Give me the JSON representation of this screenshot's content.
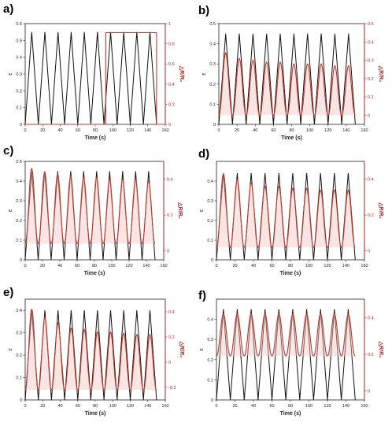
{
  "colors": {
    "strain": "#111111",
    "response": "#c0392b",
    "right_axis": "#b22222"
  },
  "chart_data": [
    {
      "panel": "a)",
      "type": "line",
      "xlabel": "Time (s)",
      "ylabel": "ε",
      "y2label": "△R/R₀",
      "xlim": [
        0,
        160
      ],
      "xticks": [
        0,
        20,
        40,
        60,
        80,
        100,
        120,
        140,
        160
      ],
      "ylim": [
        0,
        0.6
      ],
      "yticks": [
        0,
        0.1,
        0.2,
        0.3,
        0.4,
        0.5,
        0.6
      ],
      "y2lim": [
        0,
        1.0
      ],
      "y2ticks": [
        0.0,
        0.2,
        0.4,
        0.6,
        0.8,
        1.0
      ],
      "period_s": 15,
      "cycles": 10,
      "strain_amplitude": 0.55,
      "response": {
        "shape": "plateau",
        "start_s": 92,
        "end_s": 150,
        "level": 0.91,
        "base": 0.0
      }
    },
    {
      "panel": "b)",
      "type": "line",
      "xlabel": "Time (s)",
      "ylabel": "ε",
      "y2label": "△R/R₀",
      "xlim": [
        0,
        160
      ],
      "xticks": [
        0,
        20,
        40,
        60,
        80,
        100,
        120,
        140,
        160
      ],
      "ylim": [
        0,
        0.5
      ],
      "yticks": [
        0.0,
        0.1,
        0.2,
        0.3,
        0.4,
        0.5
      ],
      "y2lim": [
        -0.05,
        0.5
      ],
      "y2ticks": [
        0.0,
        0.1,
        0.2,
        0.3,
        0.4,
        0.5
      ],
      "period_s": 15,
      "cycles": 10,
      "strain_amplitude": 0.45,
      "response": {
        "shape": "peaks",
        "peaks": [
          0.34,
          0.31,
          0.3,
          0.29,
          0.29,
          0.28,
          0.28,
          0.28,
          0.27,
          0.27
        ],
        "base": 0.0
      }
    },
    {
      "panel": "c)",
      "type": "line",
      "xlabel": "Time (s)",
      "ylabel": "ε",
      "y2label": "△R/R₀",
      "xlim": [
        0,
        160
      ],
      "xticks": [
        0,
        20,
        40,
        60,
        80,
        100,
        120,
        140,
        160
      ],
      "ylim": [
        0,
        0.5
      ],
      "yticks": [
        0.0,
        0.1,
        0.2,
        0.3,
        0.4,
        0.5
      ],
      "y2lim": [
        -0.05,
        0.5
      ],
      "y2ticks": [
        0.0,
        0.2,
        0.4
      ],
      "period_s": 15,
      "cycles": 10,
      "strain_amplitude": 0.45,
      "response": {
        "shape": "peaks",
        "peaks": [
          0.46,
          0.44,
          0.43,
          0.42,
          0.41,
          0.41,
          0.4,
          0.4,
          0.4,
          0.39
        ],
        "base": 0.04
      }
    },
    {
      "panel": "d)",
      "type": "line",
      "xlabel": "Time (s)",
      "ylabel": "ε",
      "y2label": "△R/R₀",
      "xlim": [
        0,
        160
      ],
      "xticks": [
        0,
        20,
        40,
        60,
        80,
        100,
        120,
        140,
        160
      ],
      "ylim": [
        0,
        0.5
      ],
      "yticks": [
        0.0,
        0.1,
        0.2,
        0.3,
        0.4
      ],
      "y2lim": [
        -0.05,
        0.5
      ],
      "y2ticks": [
        0.0,
        0.2,
        0.4
      ],
      "period_s": 15,
      "cycles": 10,
      "strain_amplitude": 0.44,
      "response": {
        "shape": "peaks",
        "peaks": [
          0.43,
          0.4,
          0.38,
          0.36,
          0.36,
          0.35,
          0.35,
          0.34,
          0.34,
          0.34
        ],
        "base": 0.02
      }
    },
    {
      "panel": "e)",
      "type": "line",
      "xlabel": "Time (s)",
      "ylabel": "ε",
      "y2label": "△R/R₀",
      "xlim": [
        0,
        160
      ],
      "xticks": [
        0,
        20,
        40,
        60,
        80,
        100,
        120,
        140,
        160
      ],
      "ylim": [
        0,
        0.45
      ],
      "yticks": [
        0.0,
        0.1,
        0.2,
        0.3,
        0.4
      ],
      "y2lim": [
        -0.3,
        0.5
      ],
      "y2ticks": [
        -0.2,
        0.0,
        0.2,
        0.4
      ],
      "period_s": 15,
      "cycles": 10,
      "strain_amplitude": 0.4,
      "response": {
        "shape": "peaks",
        "peaks": [
          0.42,
          0.36,
          0.31,
          0.27,
          0.26,
          0.24,
          0.24,
          0.23,
          0.22,
          0.22
        ],
        "base": -0.22
      }
    },
    {
      "panel": "f)",
      "type": "line",
      "xlabel": "Time (s)",
      "ylabel": "ε",
      "y2label": "△R/R₀",
      "xlim": [
        0,
        160
      ],
      "xticks": [
        0,
        20,
        40,
        60,
        80,
        100,
        120,
        140,
        160
      ],
      "ylim": [
        0,
        0.5
      ],
      "yticks": [
        0.0,
        0.1,
        0.2,
        0.3,
        0.4
      ],
      "y2lim": [
        -0.05,
        0.5
      ],
      "y2ticks": [
        0.0,
        0.2,
        0.4
      ],
      "period_s": 15,
      "cycles": 10,
      "strain_amplitude": 0.45,
      "response": {
        "shape": "peaks",
        "peaks": [
          0.42,
          0.42,
          0.42,
          0.42,
          0.42,
          0.42,
          0.42,
          0.42,
          0.42,
          0.42
        ],
        "base": 0.19
      }
    }
  ]
}
